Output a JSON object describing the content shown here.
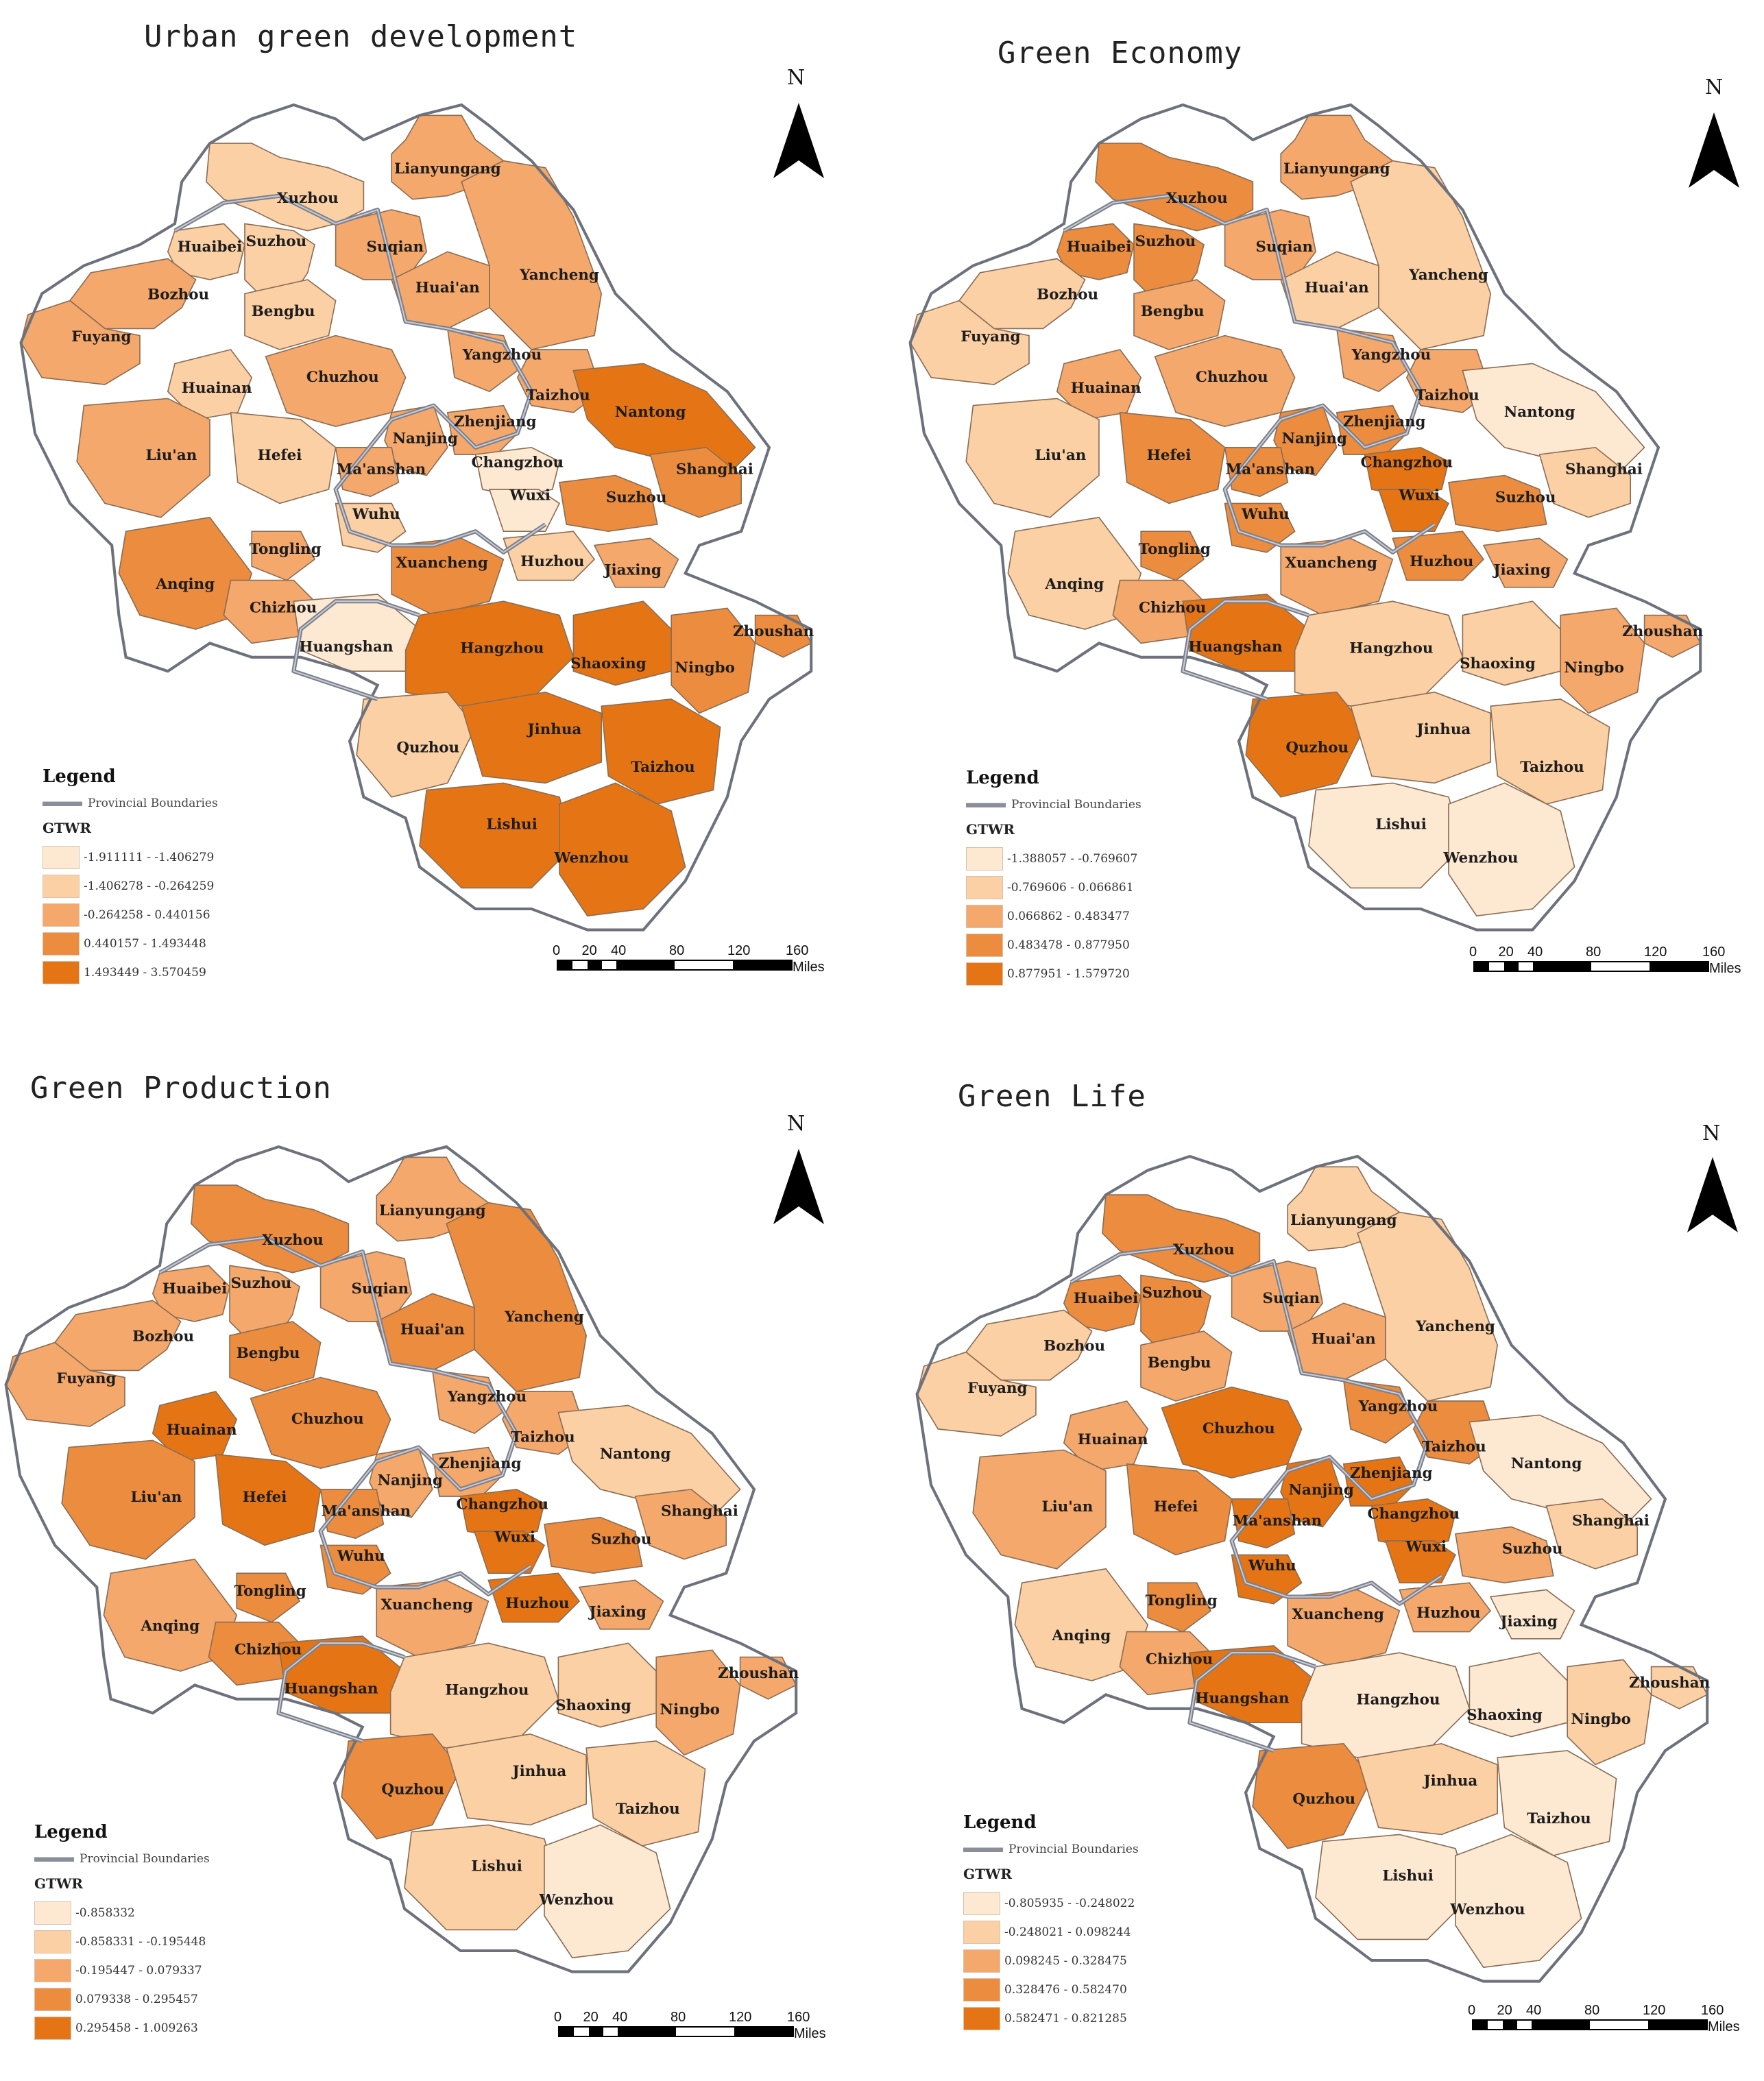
{
  "palette": [
    "#fde9d2",
    "#fbd0a4",
    "#f5a86b",
    "#ec8c3e",
    "#e57514"
  ],
  "north_label": "N",
  "legend_title": "Legend",
  "boundary_label": "Provincial Boundaries",
  "legend_subtitle": "GTWR",
  "scale": {
    "ticks": [
      "0",
      "20",
      "40",
      "80",
      "120",
      "160"
    ],
    "unit": "Miles"
  },
  "cities": [
    "Xuzhou",
    "Lianyungang",
    "Huaibei",
    "Suzhou",
    "Suqian",
    "Bozhou",
    "Bengbu",
    "Huai'an",
    "Yancheng",
    "Fuyang",
    "Huainan",
    "Chuzhou",
    "Yangzhou",
    "Taizhou",
    "Nantong",
    "Liu'an",
    "Hefei",
    "Nanjing",
    "Zhenjiang",
    "Ma'anshan",
    "Changzhou",
    "Wuxi",
    "Suzhou",
    "Shanghai",
    "Wuhu",
    "Tongling",
    "Anqing",
    "Xuancheng",
    "Huzhou",
    "Jiaxing",
    "Chizhou",
    "Huangshan",
    "Hangzhou",
    "Shaoxing",
    "Ningbo",
    "Zhoushan",
    "Quzhou",
    "Jinhua",
    "Taizhou",
    "Lishui",
    "Wenzhou"
  ],
  "panels": [
    {
      "title": "Urban green development",
      "legend_ranges": [
        "-1.911111 - -1.406279",
        "-1.406278 - -0.264259",
        "-0.264258 - 0.440156",
        "0.440157 - 1.493448",
        "1.493449 - 3.570459"
      ],
      "classes": {
        "Xuzhou": 1,
        "Lianyungang": 2,
        "Huaibei": 1,
        "Suzhou": 1,
        "Suqian": 2,
        "Bozhou": 2,
        "Bengbu": 1,
        "Huai'an": 2,
        "Yancheng": 2,
        "Fuyang": 2,
        "Huainan": 1,
        "Chuzhou": 2,
        "Yangzhou": 2,
        "Taizhou": 2,
        "Nantong": 4,
        "Liu'an": 2,
        "Hefei": 1,
        "Nanjing": 2,
        "Zhenjiang": 2,
        "Ma'anshan": 2,
        "Changzhou": 0,
        "Wuxi": 0,
        "Suzhou2": 3,
        "Shanghai": 3,
        "Wuhu": 1,
        "Tongling": 2,
        "Anqing": 3,
        "Xuancheng": 3,
        "Huzhou": 1,
        "Jiaxing": 2,
        "Chizhou": 2,
        "Huangshan": 0,
        "Hangzhou": 4,
        "Shaoxing": 4,
        "Ningbo": 3,
        "Zhoushan": 3,
        "Quzhou": 1,
        "Jinhua": 4,
        "Taizhou2": 4,
        "Lishui": 4,
        "Wenzhou": 4
      }
    },
    {
      "title": "Green Economy",
      "legend_ranges": [
        "-1.388057 - -0.769607",
        "-0.769606 - 0.066861",
        "0.066862 - 0.483477",
        "0.483478 - 0.877950",
        "0.877951 - 1.579720"
      ],
      "classes": {
        "Xuzhou": 3,
        "Lianyungang": 2,
        "Huaibei": 3,
        "Suzhou": 3,
        "Suqian": 2,
        "Bozhou": 1,
        "Bengbu": 2,
        "Huai'an": 1,
        "Yancheng": 1,
        "Fuyang": 1,
        "Huainan": 2,
        "Chuzhou": 2,
        "Yangzhou": 2,
        "Taizhou": 2,
        "Nantong": 0,
        "Liu'an": 1,
        "Hefei": 3,
        "Nanjing": 3,
        "Zhenjiang": 3,
        "Ma'anshan": 3,
        "Changzhou": 4,
        "Wuxi": 4,
        "Suzhou2": 3,
        "Shanghai": 1,
        "Wuhu": 3,
        "Tongling": 3,
        "Anqing": 1,
        "Xuancheng": 2,
        "Huzhou": 3,
        "Jiaxing": 2,
        "Chizhou": 2,
        "Huangshan": 4,
        "Hangzhou": 1,
        "Shaoxing": 1,
        "Ningbo": 2,
        "Zhoushan": 2,
        "Quzhou": 4,
        "Jinhua": 1,
        "Taizhou2": 1,
        "Lishui": 0,
        "Wenzhou": 0
      }
    },
    {
      "title": "Green Production",
      "legend_ranges": [
        "-0.858332",
        "-0.858331 - -0.195448",
        "-0.195447 - 0.079337",
        "0.079338 - 0.295457",
        "0.295458 - 1.009263"
      ],
      "classes": {
        "Xuzhou": 3,
        "Lianyungang": 2,
        "Huaibei": 2,
        "Suzhou": 2,
        "Suqian": 2,
        "Bozhou": 2,
        "Bengbu": 3,
        "Huai'an": 3,
        "Yancheng": 3,
        "Fuyang": 2,
        "Huainan": 4,
        "Chuzhou": 3,
        "Yangzhou": 2,
        "Taizhou": 2,
        "Nantong": 1,
        "Liu'an": 3,
        "Hefei": 4,
        "Nanjing": 2,
        "Zhenjiang": 2,
        "Ma'anshan": 3,
        "Changzhou": 4,
        "Wuxi": 4,
        "Suzhou2": 3,
        "Shanghai": 2,
        "Wuhu": 3,
        "Tongling": 3,
        "Anqing": 2,
        "Xuancheng": 2,
        "Huzhou": 4,
        "Jiaxing": 2,
        "Chizhou": 3,
        "Huangshan": 4,
        "Hangzhou": 1,
        "Shaoxing": 1,
        "Ningbo": 2,
        "Zhoushan": 2,
        "Quzhou": 3,
        "Jinhua": 1,
        "Taizhou2": 1,
        "Lishui": 1,
        "Wenzhou": 0
      }
    },
    {
      "title": "Green Life",
      "legend_ranges": [
        "-0.805935 - -0.248022",
        "-0.248021 - 0.098244",
        "0.098245 - 0.328475",
        "0.328476 - 0.582470",
        "0.582471 - 0.821285"
      ],
      "classes": {
        "Xuzhou": 3,
        "Lianyungang": 1,
        "Huaibei": 3,
        "Suzhou": 3,
        "Suqian": 2,
        "Bozhou": 1,
        "Bengbu": 2,
        "Huai'an": 2,
        "Yancheng": 1,
        "Fuyang": 1,
        "Huainan": 2,
        "Chuzhou": 4,
        "Yangzhou": 3,
        "Taizhou": 3,
        "Nantong": 0,
        "Liu'an": 2,
        "Hefei": 3,
        "Nanjing": 4,
        "Zhenjiang": 4,
        "Ma'anshan": 4,
        "Changzhou": 4,
        "Wuxi": 4,
        "Suzhou2": 2,
        "Shanghai": 1,
        "Wuhu": 4,
        "Tongling": 3,
        "Anqing": 1,
        "Xuancheng": 2,
        "Huzhou": 2,
        "Jiaxing": 0,
        "Chizhou": 2,
        "Huangshan": 4,
        "Hangzhou": 0,
        "Shaoxing": 0,
        "Ningbo": 1,
        "Zhoushan": 1,
        "Quzhou": 3,
        "Jinhua": 1,
        "Taizhou2": 0,
        "Lishui": 0,
        "Wenzhou": 0
      }
    }
  ]
}
